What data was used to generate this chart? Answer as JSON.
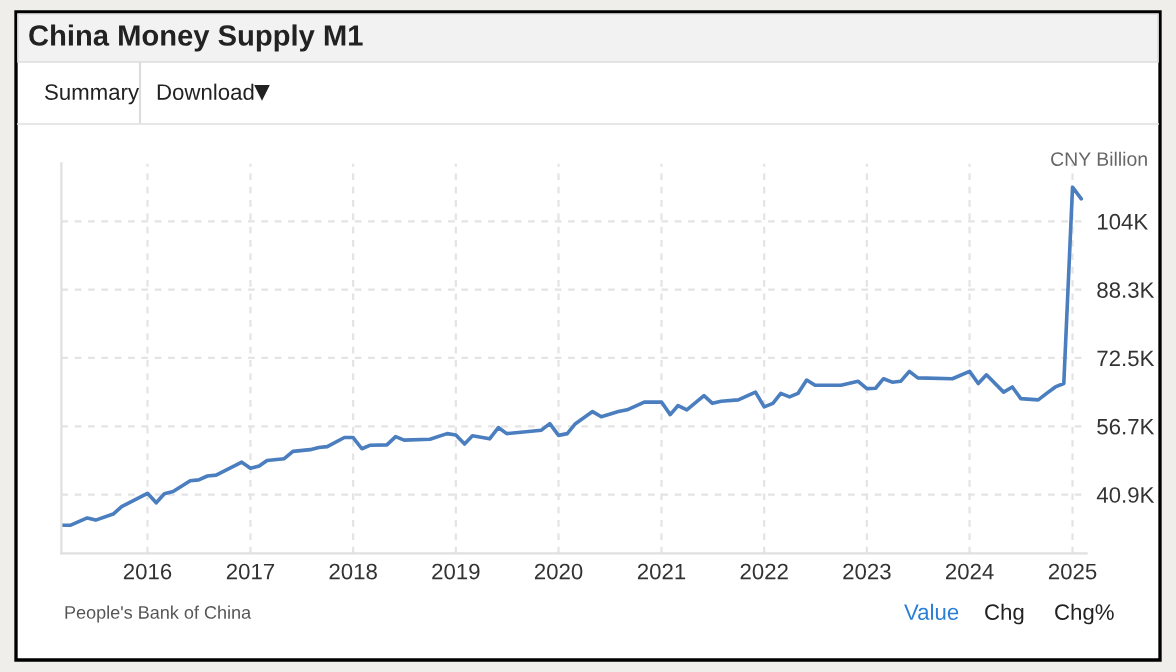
{
  "chart_data": {
    "type": "line",
    "title": "China Money Supply M1",
    "ylabel": "CNY Billion",
    "annotations": [
      "People's Bank of China",
      "Summary",
      "Download",
      "Value",
      "Chg",
      "Chg%"
    ],
    "series": [
      {
        "color": "#4a7ebf",
        "x": [
          "2015-03",
          "2015-04",
          "2015-06",
          "2015-07",
          "2015-09",
          "2015-10",
          "2016-01",
          "2016-02",
          "2016-03",
          "2016-04",
          "2016-06",
          "2016-07",
          "2016-08",
          "2016-09",
          "2016-12",
          "2017-01",
          "2017-02",
          "2017-03",
          "2017-05",
          "2017-06",
          "2017-08",
          "2017-09",
          "2017-10",
          "2017-12",
          "2018-01",
          "2018-02",
          "2018-03",
          "2018-05",
          "2018-06",
          "2018-07",
          "2018-10",
          "2018-12",
          "2019-01",
          "2019-02",
          "2019-03",
          "2019-05",
          "2019-06",
          "2019-07",
          "2019-11",
          "2019-12",
          "2020-01",
          "2020-02",
          "2020-03",
          "2020-05",
          "2020-06",
          "2020-08",
          "2020-09",
          "2020-11",
          "2021-01",
          "2021-02",
          "2021-03",
          "2021-04",
          "2021-06",
          "2021-07",
          "2021-08",
          "2021-10",
          "2021-12",
          "2022-01",
          "2022-02",
          "2022-03",
          "2022-04",
          "2022-05",
          "2022-06",
          "2022-07",
          "2022-10",
          "2022-12",
          "2023-01",
          "2023-02",
          "2023-03",
          "2023-04",
          "2023-05",
          "2023-06",
          "2023-07",
          "2023-11",
          "2024-01",
          "2024-02",
          "2024-03",
          "2024-05",
          "2024-06",
          "2024-07",
          "2024-09",
          "2024-10",
          "2024-11",
          "2024-12",
          "2025-01",
          "2025-02"
        ],
        "values": [
          33.8,
          33.8,
          35.5,
          35.0,
          36.4,
          38.1,
          41.2,
          39.0,
          41.1,
          41.6,
          44.1,
          44.3,
          45.2,
          45.4,
          48.4,
          47.0,
          47.5,
          48.8,
          49.2,
          50.9,
          51.3,
          51.8,
          52.0,
          54.1,
          54.1,
          51.5,
          52.3,
          52.4,
          54.3,
          53.5,
          53.7,
          55.0,
          54.7,
          52.6,
          54.5,
          53.8,
          56.4,
          55.0,
          55.8,
          57.3,
          54.6,
          55.0,
          57.3,
          60.1,
          58.9,
          60.1,
          60.5,
          62.3,
          62.3,
          59.4,
          61.5,
          60.5,
          63.8,
          62.0,
          62.5,
          62.8,
          64.6,
          61.2,
          62.0,
          64.3,
          63.5,
          64.3,
          67.4,
          66.2,
          66.2,
          67.1,
          65.4,
          65.5,
          67.7,
          66.9,
          67.1,
          69.4,
          67.9,
          67.7,
          69.4,
          66.6,
          68.6,
          64.6,
          65.8,
          63.1,
          62.8,
          64.3,
          65.8,
          66.6,
          112.0,
          109.3
        ]
      }
    ],
    "xlim": [
      "2015-03",
      "2025-02-20"
    ],
    "xticks": [
      "2016",
      "2017",
      "2018",
      "2019",
      "2020",
      "2021",
      "2022",
      "2023",
      "2024",
      "2025"
    ],
    "ylim": [
      27.3,
      117.5
    ],
    "yticks": [
      {
        "value": 40.9,
        "label": "40.9K"
      },
      {
        "value": 56.7,
        "label": "56.7K"
      },
      {
        "value": 72.5,
        "label": "72.5K"
      },
      {
        "value": 88.3,
        "label": "88.3K"
      },
      {
        "value": 104.1,
        "label": "104K"
      }
    ],
    "grid": true,
    "legend": false,
    "marker": "none",
    "line_style": "solid"
  }
}
